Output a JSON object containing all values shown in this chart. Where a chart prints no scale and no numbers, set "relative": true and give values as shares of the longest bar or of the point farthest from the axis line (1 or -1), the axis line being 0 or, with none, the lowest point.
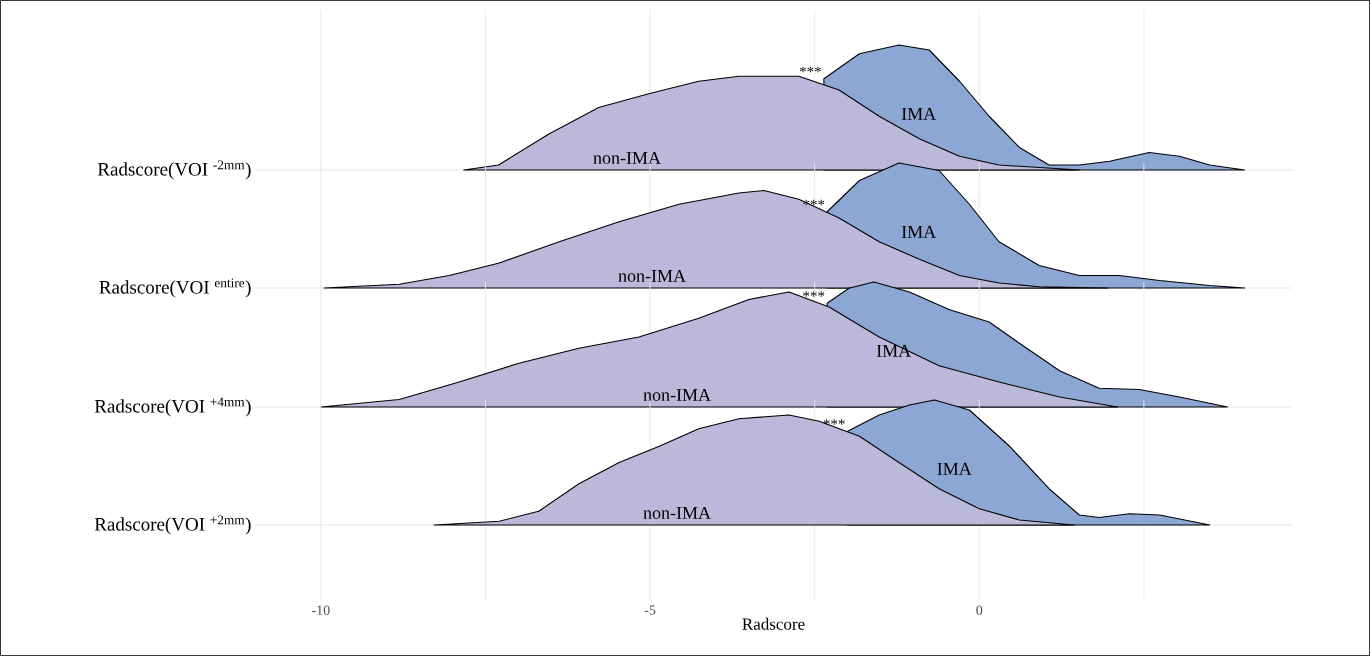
{
  "chart_data": [
    {
      "type": "area",
      "relative": true,
      "ylabel": "Radscore(VOI $^{-2mm}$)",
      "xlim": [
        -11,
        4.75
      ],
      "xticks": [
        -10,
        {
          "value": -7.5,
          "label": null
        },
        -5,
        {
          "value": -2.5,
          "label": null
        },
        0,
        {
          "value": 2.5,
          "label": null
        }
      ],
      "grid": "x",
      "tick_labels": false,
      "legend": false,
      "series": [
        {
          "name": "IMA",
          "color": "#8ca7d4",
          "x": [
            -2.36,
            -1.82,
            -1.22,
            -0.76,
            -0.3,
            0.15,
            0.61,
            1.06,
            1.52,
            1.98,
            2.58,
            3.04,
            3.5,
            4.03
          ],
          "values": [
            0.73,
            0.93,
            1,
            0.96,
            0.71,
            0.43,
            0.18,
            0.04,
            0.04,
            0.07,
            0.14,
            0.11,
            0.04,
            0
          ]
        },
        {
          "name": "non-IMA",
          "color": "#bcb8d9",
          "x": [
            -7.83,
            -7.3,
            -6.53,
            -5.78,
            -5.02,
            -4.26,
            -3.65,
            -2.74,
            -2.13,
            -1.52,
            -0.91,
            -0.3,
            0.3,
            1.52
          ],
          "values": [
            0,
            0.04,
            0.29,
            0.5,
            0.61,
            0.71,
            0.75,
            0.75,
            0.64,
            0.43,
            0.25,
            0.11,
            0.04,
            0
          ]
        }
      ],
      "annotations": [
        "***"
      ]
    },
    {
      "type": "area",
      "relative": true,
      "ylabel": "Radscore(VOI $^{entire}$)",
      "xlim": [
        -11,
        4.75
      ],
      "xticks": [
        -10,
        {
          "value": -7.5,
          "label": null
        },
        -5,
        {
          "value": -2.5,
          "label": null
        },
        0,
        {
          "value": 2.5,
          "label": null
        }
      ],
      "grid": "x",
      "tick_labels": false,
      "legend": false,
      "series": [
        {
          "name": "IMA",
          "color": "#8ca7d4",
          "x": [
            -2.31,
            -1.82,
            -1.22,
            -0.61,
            -0.15,
            0.3,
            0.91,
            1.52,
            2.13,
            2.74,
            3.5,
            4.03
          ],
          "values": [
            0.61,
            0.86,
            1,
            0.94,
            0.67,
            0.37,
            0.18,
            0.1,
            0.1,
            0.06,
            0.02,
            0
          ]
        },
        {
          "name": "non-IMA",
          "color": "#bcb8d9",
          "x": [
            -9.95,
            -8.81,
            -8.05,
            -7.29,
            -6.38,
            -5.47,
            -4.56,
            -3.65,
            -3.27,
            -2.74,
            -2.13,
            -1.52,
            -0.91,
            -0.3,
            0.3,
            0.91,
            1.95
          ],
          "values": [
            0,
            0.03,
            0.1,
            0.2,
            0.37,
            0.53,
            0.67,
            0.76,
            0.78,
            0.71,
            0.56,
            0.37,
            0.23,
            0.1,
            0.04,
            0.01,
            0
          ]
        }
      ],
      "annotations": [
        "***"
      ]
    },
    {
      "type": "area",
      "relative": true,
      "ylabel": "Radscore(VOI $^{+4mm}$)",
      "xlim": [
        -11,
        4.75
      ],
      "xticks": [
        -10,
        {
          "value": -7.5,
          "label": null
        },
        -5,
        {
          "value": -2.5,
          "label": null
        },
        0,
        {
          "value": 2.5,
          "label": null
        }
      ],
      "grid": "x",
      "tick_labels": false,
      "legend": false,
      "series": [
        {
          "name": "IMA",
          "color": "#8ca7d4",
          "x": [
            -2.31,
            -1.98,
            -1.6,
            -1.06,
            -0.46,
            0.15,
            0.61,
            1.22,
            1.82,
            2.43,
            3.04,
            3.77
          ],
          "values": [
            0.83,
            0.95,
            1,
            0.92,
            0.78,
            0.68,
            0.51,
            0.29,
            0.15,
            0.14,
            0.08,
            0
          ]
        },
        {
          "name": "non-IMA",
          "color": "#bcb8d9",
          "x": [
            -10,
            -8.81,
            -7.9,
            -6.99,
            -6.08,
            -5.17,
            -4.26,
            -3.5,
            -2.89,
            -2.28,
            -1.52,
            -0.61,
            0.3,
            1.22,
            2.1
          ],
          "values": [
            0,
            0.06,
            0.2,
            0.35,
            0.47,
            0.56,
            0.71,
            0.86,
            0.92,
            0.8,
            0.56,
            0.33,
            0.2,
            0.08,
            0
          ]
        }
      ],
      "annotations": [
        "***"
      ]
    },
    {
      "type": "area",
      "relative": true,
      "ylabel": "Radscore(VOI $^{+2mm}$)",
      "xlabel": "Radscore",
      "xlim": [
        -11,
        4.75
      ],
      "xticks": [
        -10,
        {
          "value": -7.5,
          "label": null
        },
        -5,
        {
          "value": -2.5,
          "label": null
        },
        0,
        {
          "value": 2.5,
          "label": null
        }
      ],
      "grid": "x",
      "tick_labels": "x",
      "legend": false,
      "series": [
        {
          "name": "IMA",
          "color": "#8ca7d4",
          "x": [
            -2.0,
            -1.52,
            -1.06,
            -0.68,
            -0.15,
            0.46,
            1.06,
            1.52,
            1.82,
            2.28,
            2.74,
            3.5
          ],
          "values": [
            0.75,
            0.88,
            0.96,
            1,
            0.92,
            0.63,
            0.29,
            0.08,
            0.06,
            0.09,
            0.08,
            0
          ]
        },
        {
          "name": "non-IMA",
          "color": "#bcb8d9",
          "x": [
            -8.28,
            -7.29,
            -6.69,
            -6.08,
            -5.47,
            -4.86,
            -4.26,
            -3.65,
            -2.89,
            -2.43,
            -1.82,
            -1.22,
            -0.61,
            0,
            0.61,
            1.44
          ],
          "values": [
            0,
            0.03,
            0.11,
            0.33,
            0.5,
            0.63,
            0.77,
            0.85,
            0.88,
            0.83,
            0.71,
            0.5,
            0.29,
            0.13,
            0.04,
            0
          ]
        }
      ],
      "annotations": [
        "***"
      ]
    }
  ]
}
